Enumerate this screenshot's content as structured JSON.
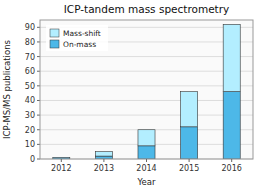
{
  "chart_data": {
    "type": "bar",
    "title": "ICP-tandem mass spectrometry",
    "x_label": "Year",
    "y_label": "ICP-MS/MS publications",
    "categories": [
      "2012",
      "2013",
      "2014",
      "2015",
      "2016"
    ],
    "series": [
      {
        "name": "On-mass",
        "color": "#4db8e8",
        "values": [
          1,
          2,
          9,
          22,
          46
        ]
      },
      {
        "name": "Mass-shift",
        "color": "#b3eeff",
        "values": [
          0,
          3,
          11,
          24,
          46
        ]
      }
    ],
    "stacked": true,
    "ylim": [
      0,
      95
    ],
    "yticks": [
      0,
      10,
      20,
      30,
      40,
      50,
      60,
      70,
      80,
      90
    ],
    "grid": true,
    "legend": "upper left"
  }
}
